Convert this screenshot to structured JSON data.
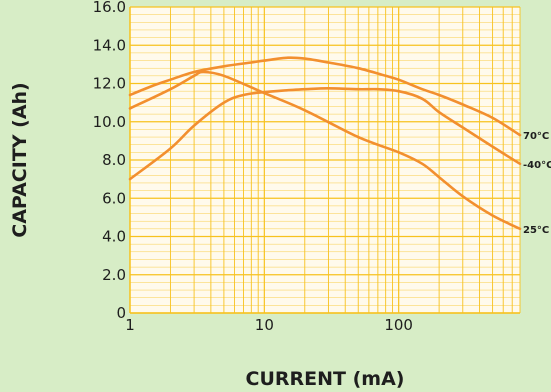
{
  "chart_data": {
    "type": "line",
    "title": "",
    "xlabel": "CURRENT (mA)",
    "ylabel": "CAPACITY (Ah)",
    "x_scale": "log",
    "xlim": [
      1,
      800
    ],
    "ylim": [
      0,
      16
    ],
    "x_ticks": [
      1,
      10,
      100
    ],
    "x_tick_labels": [
      "1",
      "10",
      "100"
    ],
    "y_ticks": [
      0,
      2,
      4,
      6,
      8,
      10,
      12,
      14,
      16
    ],
    "y_tick_labels": [
      "0",
      "2.0",
      "4.0",
      "6.0",
      "8.0",
      "10.0",
      "12.0",
      "14.0",
      "16.0"
    ],
    "grid": true,
    "line_color": "#f28f2f",
    "grid_color": "#f7c21f",
    "plot_bg": "#fffaec",
    "page_bg": "#d7edc6",
    "series": [
      {
        "name": "70°C",
        "x": [
          1,
          1.5,
          2,
          3,
          5,
          8,
          10,
          15,
          20,
          30,
          50,
          80,
          100,
          150,
          200,
          300,
          500,
          800
        ],
        "y": [
          11.4,
          11.9,
          12.2,
          12.6,
          12.9,
          13.1,
          13.2,
          13.35,
          13.3,
          13.1,
          12.8,
          12.4,
          12.2,
          11.7,
          11.4,
          10.9,
          10.2,
          9.3
        ]
      },
      {
        "name": "25°C",
        "x": [
          1,
          2,
          3,
          3.5,
          5,
          10,
          20,
          50,
          100,
          150,
          200,
          300,
          500,
          800
        ],
        "y": [
          10.7,
          11.7,
          12.4,
          12.6,
          12.4,
          11.5,
          10.6,
          9.2,
          8.4,
          7.8,
          7.1,
          6.1,
          5.1,
          4.4
        ]
      },
      {
        "name": "-40°C",
        "x": [
          1,
          2,
          3,
          5,
          7,
          10,
          15,
          20,
          30,
          50,
          70,
          100,
          150,
          200,
          300,
          500,
          800
        ],
        "y": [
          7.0,
          8.6,
          9.8,
          11.0,
          11.4,
          11.55,
          11.65,
          11.7,
          11.75,
          11.7,
          11.7,
          11.6,
          11.2,
          10.5,
          9.7,
          8.7,
          7.8
        ]
      }
    ]
  }
}
